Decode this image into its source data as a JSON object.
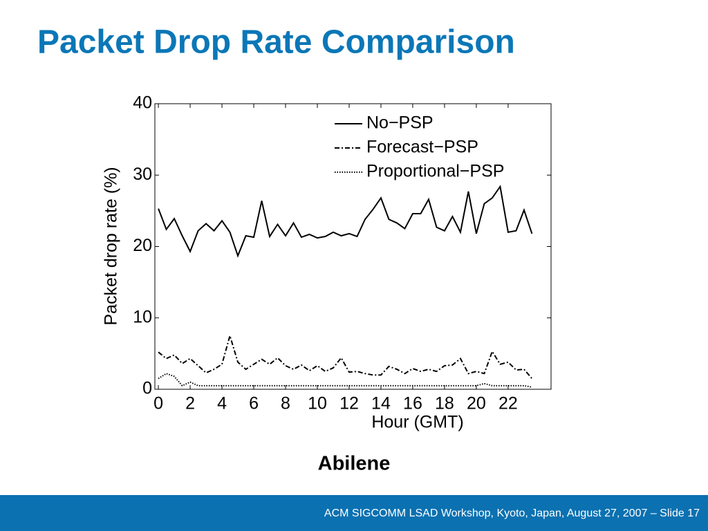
{
  "slide": {
    "title": "Packet Drop Rate Comparison",
    "caption": "Abilene",
    "footer": "ACM SIGCOMM LSAD Workshop, Kyoto, Japan, August 27, 2007 – Slide 17"
  },
  "chart_data": {
    "type": "line",
    "x": [
      0,
      0.5,
      1,
      1.5,
      2,
      2.5,
      3,
      3.5,
      4,
      4.5,
      5,
      5.5,
      6,
      6.5,
      7,
      7.5,
      8,
      8.5,
      9,
      9.5,
      10,
      10.5,
      11,
      11.5,
      12,
      12.5,
      13,
      13.5,
      14,
      14.5,
      15,
      15.5,
      16,
      16.5,
      17,
      17.5,
      18,
      18.5,
      19,
      19.5,
      20,
      20.5,
      21,
      21.5,
      22,
      22.5,
      23,
      23.5
    ],
    "series": [
      {
        "name": "No−PSP",
        "color": "#000000",
        "style": "solid",
        "values": [
          25.3,
          22.4,
          23.9,
          21.5,
          19.3,
          22.2,
          23.2,
          22.2,
          23.6,
          22.0,
          18.7,
          21.5,
          21.3,
          26.4,
          21.4,
          23.1,
          21.5,
          23.3,
          21.3,
          21.7,
          21.2,
          21.4,
          22.0,
          21.5,
          21.8,
          21.4,
          23.8,
          25.2,
          26.8,
          23.8,
          23.3,
          22.5,
          24.6,
          24.6,
          26.6,
          22.7,
          22.2,
          24.2,
          22.0,
          27.7,
          21.8,
          26.0,
          26.8,
          28.4,
          22.0,
          22.2,
          25.1,
          21.8
        ]
      },
      {
        "name": "Forecast−PSP",
        "color": "#000000",
        "style": "dashdot",
        "values": [
          5.2,
          4.3,
          4.8,
          3.6,
          4.3,
          3.3,
          2.3,
          2.8,
          3.5,
          7.5,
          3.8,
          2.8,
          3.5,
          4.2,
          3.5,
          4.4,
          3.3,
          2.8,
          3.4,
          2.6,
          3.3,
          2.5,
          3.0,
          4.4,
          2.4,
          2.5,
          2.2,
          2.0,
          2.0,
          3.2,
          2.8,
          2.2,
          2.9,
          2.5,
          2.8,
          2.5,
          3.3,
          3.4,
          4.3,
          2.2,
          2.5,
          2.2,
          5.3,
          3.5,
          3.8,
          2.7,
          2.8,
          1.5
        ]
      },
      {
        "name": "Proportional−PSP",
        "color": "#000000",
        "style": "dotted",
        "values": [
          1.5,
          2.2,
          1.8,
          0.5,
          1.0,
          0.5,
          0.5,
          0.5,
          0.5,
          0.5,
          0.5,
          0.5,
          0.5,
          0.5,
          0.5,
          0.5,
          0.5,
          0.5,
          0.5,
          0.5,
          0.5,
          0.5,
          0.5,
          0.5,
          0.5,
          0.5,
          0.5,
          0.5,
          0.5,
          0.5,
          0.5,
          0.5,
          0.5,
          0.5,
          0.5,
          0.5,
          0.5,
          0.5,
          0.5,
          0.5,
          0.5,
          0.8,
          0.5,
          0.5,
          0.5,
          0.5,
          0.5,
          0.3
        ]
      }
    ],
    "xlabel": "Hour (GMT)",
    "ylabel": "Packet drop rate (%)",
    "xlim": [
      -0.22,
      24.7
    ],
    "ylim": [
      0,
      40
    ],
    "xticks": [
      0,
      2,
      4,
      6,
      8,
      10,
      12,
      14,
      16,
      18,
      20,
      22
    ],
    "yticks": [
      0,
      10,
      20,
      30,
      40
    ],
    "legend": "upper right"
  }
}
